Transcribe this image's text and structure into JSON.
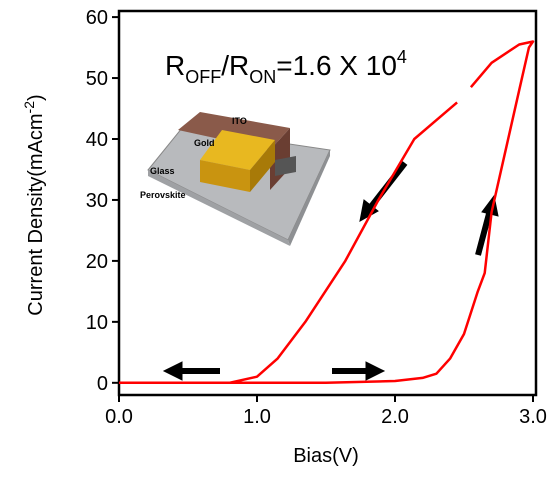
{
  "chart_data": {
    "type": "line",
    "x_label": "Bias(V)",
    "y_label_parts": [
      "Current Density(mAcm",
      "-2",
      ")"
    ],
    "annotation_parts": [
      "R",
      "OFF",
      "/R",
      "ON",
      "=1.6 X 10",
      "4"
    ],
    "inset_labels": [
      "ITO",
      "Gold",
      "Glass",
      "Perovskite"
    ],
    "x": [
      0,
      0.5,
      1.0,
      1.5,
      2.0,
      2.2,
      2.3,
      2.4,
      2.5,
      2.6,
      2.65,
      2.7,
      2.8,
      2.9,
      2.97,
      3.0,
      2.9,
      2.7,
      2.55,
      2.5,
      2.45,
      2.14,
      1.88,
      1.64,
      1.35,
      1.15,
      1.0,
      0.8,
      0.5,
      0
    ],
    "series": [
      {
        "color": "#ff0000",
        "values": [
          0,
          0,
          0,
          0,
          0.3,
          0.8,
          1.5,
          4,
          8,
          15,
          18,
          28,
          38,
          48,
          55,
          56,
          55.5,
          52.5,
          48.5,
          null,
          46,
          40,
          30,
          20,
          10,
          4,
          1,
          0,
          0,
          0
        ]
      }
    ],
    "xlim": [
      0,
      3.0
    ],
    "ylim": [
      -2,
      61
    ],
    "xticks": [
      {
        "value": 0,
        "label": "0.0"
      },
      {
        "value": 1,
        "label": "1.0"
      },
      {
        "value": 2,
        "label": "2.0"
      },
      {
        "value": 3,
        "label": "3.0"
      }
    ],
    "yticks": [
      0,
      10,
      20,
      30,
      40,
      50,
      60
    ]
  }
}
